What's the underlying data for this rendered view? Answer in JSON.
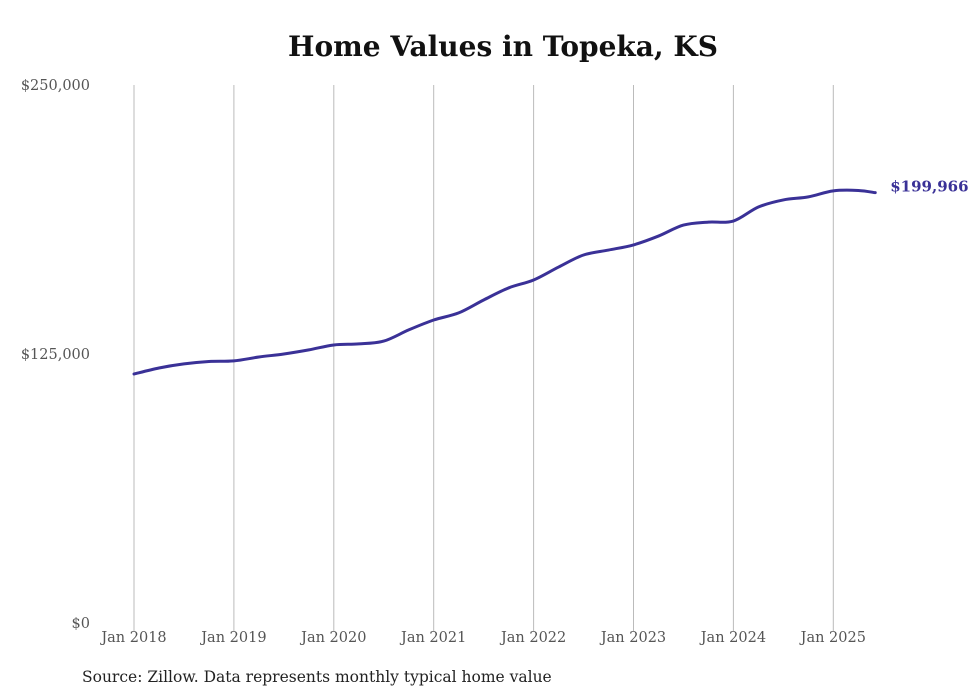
{
  "chart_data": {
    "type": "line",
    "title": "Home Values in Topeka, KS",
    "xlabel": "",
    "ylabel": "",
    "ylim": [
      0,
      250000
    ],
    "y_ticks": [
      0,
      125000,
      250000
    ],
    "y_tick_labels": [
      "$0",
      "$125,000",
      "$250,000"
    ],
    "x_ticks": [
      2018,
      2019,
      2020,
      2021,
      2022,
      2023,
      2024,
      2025
    ],
    "x_tick_labels": [
      "Jan 2018",
      "Jan 2019",
      "Jan 2020",
      "Jan 2021",
      "Jan 2022",
      "Jan 2023",
      "Jan 2024",
      "Jan 2025"
    ],
    "grid": "vertical",
    "series": [
      {
        "name": "Typical home value",
        "color": "#3a3197",
        "x": [
          2018.0,
          2018.25,
          2018.5,
          2018.75,
          2019.0,
          2019.25,
          2019.5,
          2019.75,
          2020.0,
          2020.25,
          2020.5,
          2020.75,
          2021.0,
          2021.25,
          2021.5,
          2021.75,
          2022.0,
          2022.25,
          2022.5,
          2022.75,
          2023.0,
          2023.25,
          2023.5,
          2023.75,
          2024.0,
          2024.25,
          2024.5,
          2024.75,
          2025.0,
          2025.25,
          2025.42
        ],
        "values": [
          115700,
          118500,
          120400,
          121500,
          121800,
          123600,
          125000,
          126900,
          129200,
          129700,
          131000,
          136200,
          140800,
          144100,
          150100,
          155700,
          159400,
          165400,
          171000,
          173300,
          175700,
          179800,
          184900,
          186300,
          186800,
          193300,
          196600,
          198000,
          200800,
          201000,
          199966
        ]
      }
    ],
    "end_label": "$199,966"
  },
  "footer": {
    "source": "Source: Zillow. Data represents monthly typical home value"
  }
}
